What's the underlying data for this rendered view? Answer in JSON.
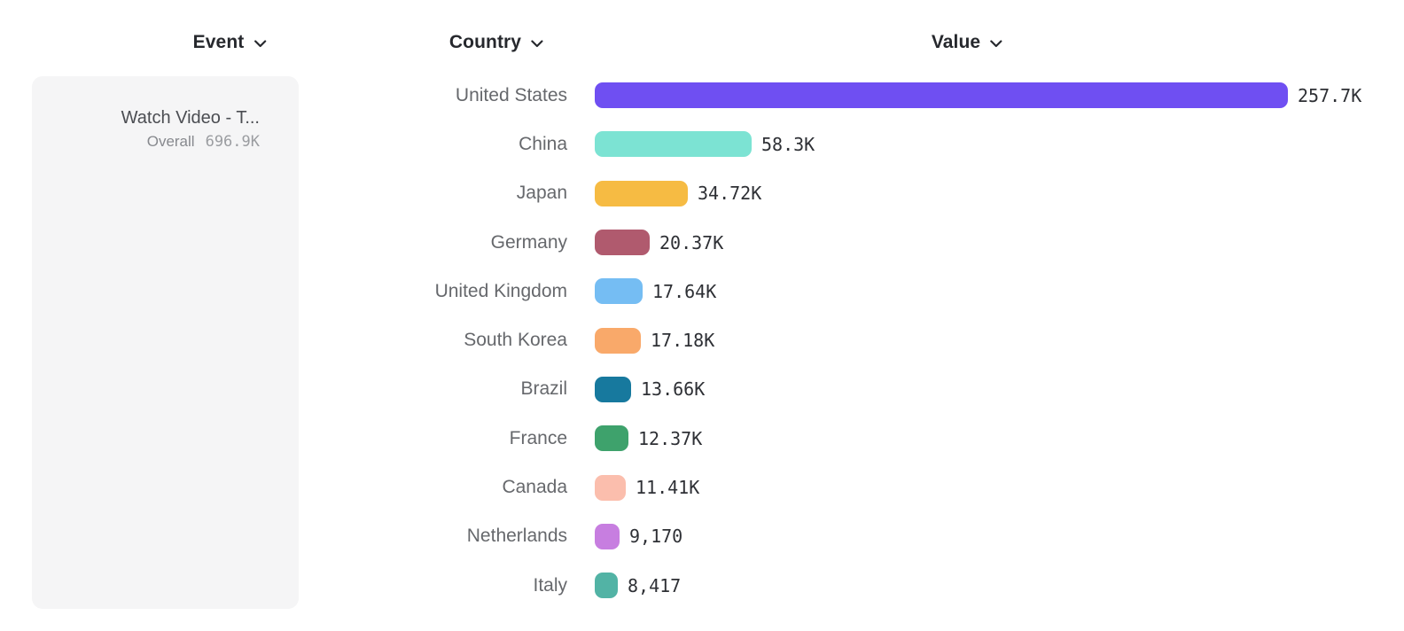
{
  "headers": {
    "event": {
      "label": "Event"
    },
    "country": {
      "label": "Country"
    },
    "value": {
      "label": "Value"
    }
  },
  "event_panel": {
    "title": "Watch Video - T...",
    "overall_label": "Overall",
    "overall_value": "696.9K"
  },
  "chart_data": {
    "type": "bar",
    "orientation": "horizontal",
    "title": "",
    "xlabel": "Value",
    "ylabel": "Country",
    "grid": false,
    "xlim": [
      0,
      257700
    ],
    "categories": [
      "United States",
      "China",
      "Japan",
      "Germany",
      "United Kingdom",
      "South Korea",
      "Brazil",
      "France",
      "Canada",
      "Netherlands",
      "Italy"
    ],
    "values": [
      257700,
      58300,
      34720,
      20370,
      17640,
      17180,
      13660,
      12370,
      11410,
      9170,
      8417
    ],
    "value_labels": [
      "257.7K",
      "58.3K",
      "34.72K",
      "20.37K",
      "17.64K",
      "17.18K",
      "13.66K",
      "12.37K",
      "11.41K",
      "9,170",
      "8,417"
    ],
    "bar_colors": [
      "#6f4ff2",
      "#7ce3d3",
      "#f6bb43",
      "#b05a6e",
      "#75bdf3",
      "#f9a96a",
      "#17799e",
      "#3ea26c",
      "#fbbead",
      "#c77ee0",
      "#52b3a5"
    ]
  },
  "icons": {
    "chevron_color": "#26282d"
  },
  "layout_colors": {
    "event_panel_bg": "#f5f5f6",
    "header_text": "#26282d",
    "country_label_text": "#66686c",
    "value_text": "#2e3035"
  }
}
